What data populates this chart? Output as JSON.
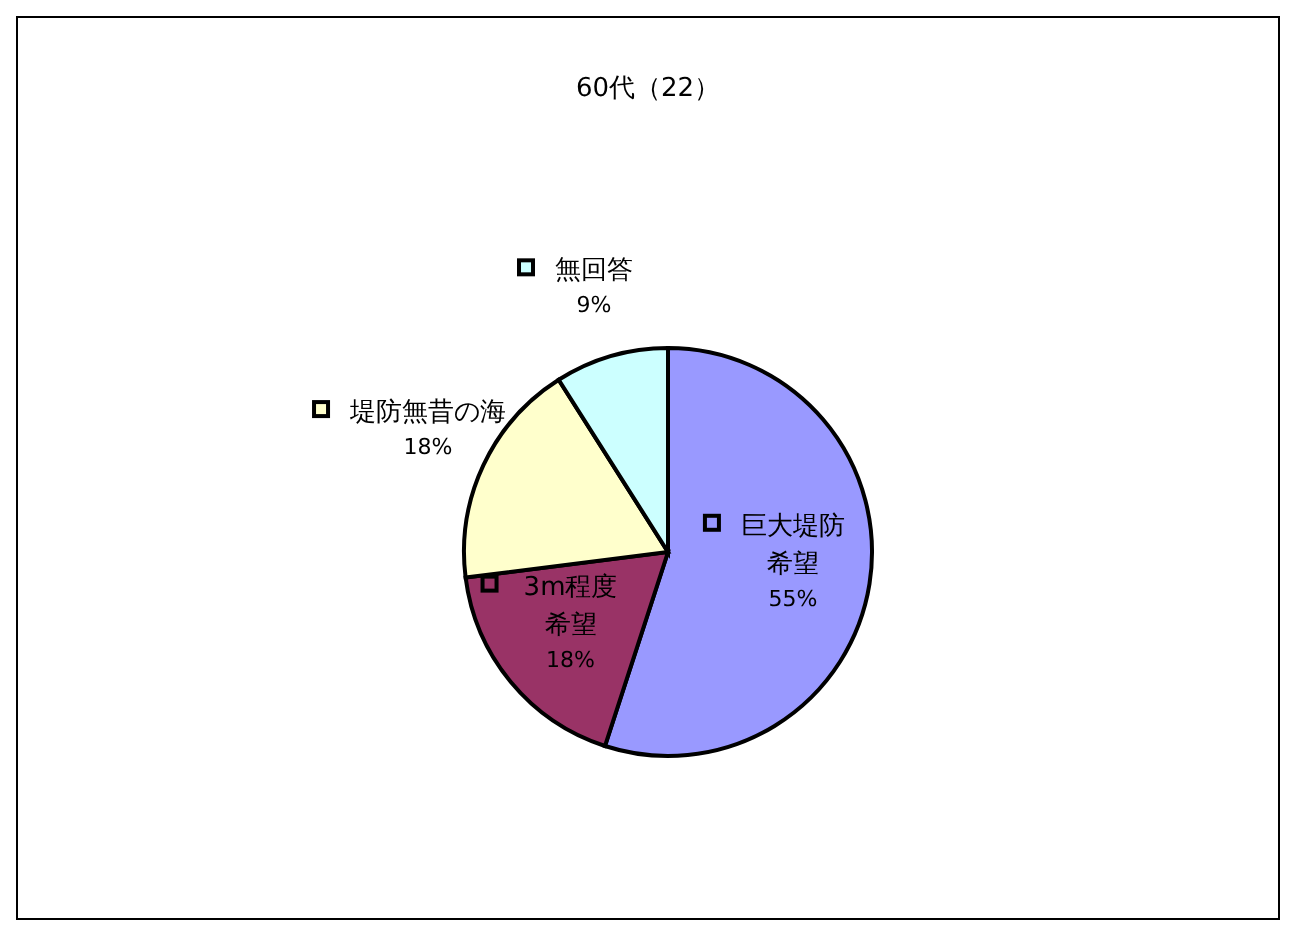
{
  "chart_data": {
    "type": "pie",
    "title": "60代（22）",
    "categories": [
      "巨大堤防希望",
      "3m程度希望",
      "堤防無昔の海",
      "無回答"
    ],
    "values": [
      55,
      18,
      18,
      9
    ],
    "colors": [
      "#9999ff",
      "#993366",
      "#ffffcc",
      "#ccffff"
    ],
    "value_labels": [
      "55%",
      "18%",
      "18%",
      "9%"
    ],
    "legend": "center"
  }
}
